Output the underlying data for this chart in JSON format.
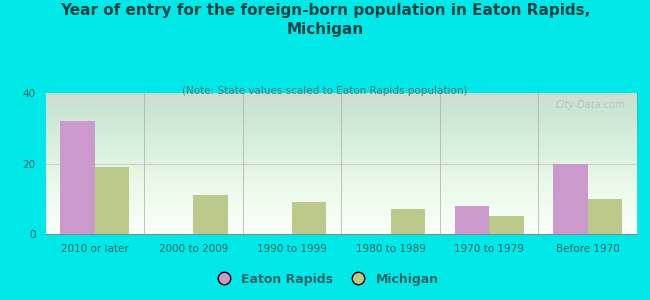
{
  "title": "Year of entry for the foreign-born population in Eaton Rapids,\nMichigan",
  "subtitle": "(Note: State values scaled to Eaton Rapids population)",
  "categories": [
    "2010 or later",
    "2000 to 2009",
    "1990 to 1999",
    "1980 to 1989",
    "1970 to 1979",
    "Before 1970"
  ],
  "eaton_rapids": [
    32,
    0,
    0,
    0,
    8,
    20
  ],
  "michigan": [
    19,
    11,
    9,
    7,
    5,
    10
  ],
  "eaton_color": "#cc99cc",
  "michigan_color": "#bbc98a",
  "background_color": "#00e8e8",
  "ylim": [
    0,
    40
  ],
  "yticks": [
    0,
    20,
    40
  ],
  "title_fontsize": 11,
  "subtitle_fontsize": 7.5,
  "tick_fontsize": 7.5,
  "legend_fontsize": 9,
  "watermark_text": "City-Data.com",
  "bar_width": 0.35
}
